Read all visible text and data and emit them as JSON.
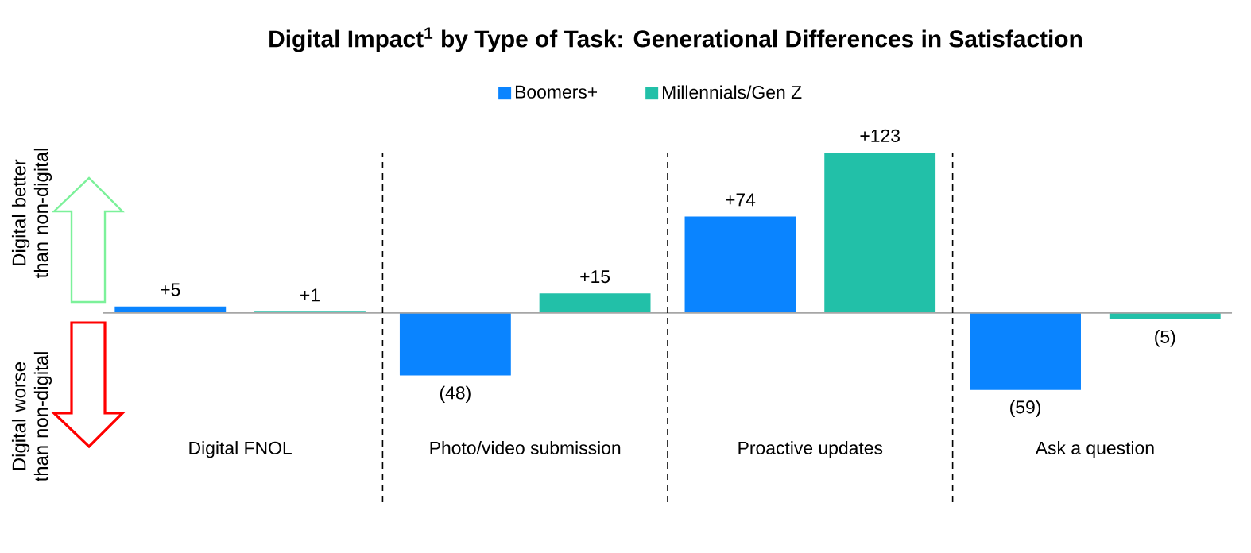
{
  "chart_data": {
    "type": "bar",
    "title": "Digital Impact$^{1}$ by Type of Task: Generational Differences in Satisfaction",
    "categories": [
      "Digital FNOL",
      "Photo/video submission",
      "Proactive updates",
      "Ask a question"
    ],
    "series": [
      {
        "name": "Boomers+",
        "color": "#0a84ff",
        "values": [
          5,
          -48,
          74,
          -59
        ],
        "value_labels": [
          "+5",
          "(48)",
          "+74",
          "(59)"
        ]
      },
      {
        "name": "Millennials/Gen Z",
        "color": "#22c0a8",
        "values": [
          1,
          15,
          123,
          -5
        ],
        "value_labels": [
          "+1",
          "+15",
          "+123",
          "(5)"
        ]
      }
    ],
    "annotations": [
      "Digital better than non-digital",
      "Digital worse than non-digital"
    ],
    "legend": "top"
  }
}
